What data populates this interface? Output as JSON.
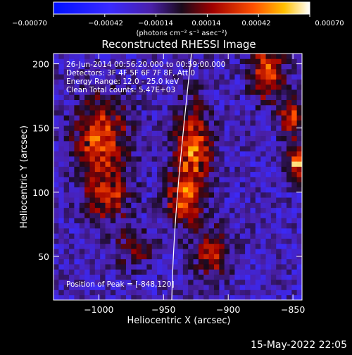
{
  "chart_data": {
    "type": "heatmap",
    "title": "Reconstructed RHESSI Image",
    "xlabel": "Heliocentric X (arcsec)",
    "ylabel": "Heliocentric Y (arcsec)",
    "xlim": [
      -1035,
      -843
    ],
    "ylim": [
      16,
      208
    ],
    "x_ticks": [
      -1000,
      -950,
      -900,
      -850
    ],
    "y_ticks": [
      50,
      100,
      150,
      200
    ],
    "colorbar": {
      "label": "(photons cm⁻² s⁻¹ asec⁻²)",
      "range": [
        -0.0007,
        0.0007
      ],
      "ticks": [
        "-0.00070",
        "-0.00042",
        "-0.00014",
        "0.00014",
        "0.00042",
        "0.00070"
      ]
    },
    "annotations": [
      "26-Jun-2014 00:56:20.000 to 00:59:00.000",
      "Detectors: 3F 4F 5F 6F 7F 8F, Att 0",
      "Energy Range: 12.0 - 25.0 keV",
      "Clean     Total counts: 5.47E+03"
    ],
    "peak_label": "Position of Peak = [-848,120]",
    "sources": [
      {
        "x": -1000,
        "y": 140,
        "sx": 14,
        "sy": 22,
        "amp": 0.00055
      },
      {
        "x": -995,
        "y": 95,
        "sx": 12,
        "sy": 14,
        "amp": 0.0004
      },
      {
        "x": -975,
        "y": 55,
        "sx": 10,
        "sy": 10,
        "amp": 0.0003
      },
      {
        "x": -930,
        "y": 130,
        "sx": 10,
        "sy": 26,
        "amp": 0.0006
      },
      {
        "x": -938,
        "y": 90,
        "sx": 9,
        "sy": 12,
        "amp": 0.00045
      },
      {
        "x": -915,
        "y": 50,
        "sx": 10,
        "sy": 14,
        "amp": 0.0004
      },
      {
        "x": -872,
        "y": 190,
        "sx": 9,
        "sy": 14,
        "amp": 0.00058
      },
      {
        "x": -853,
        "y": 155,
        "sx": 6,
        "sy": 12,
        "amp": 0.0005
      },
      {
        "x": -848,
        "y": 120,
        "sx": 6,
        "sy": 8,
        "amp": 0.0007
      }
    ]
  },
  "footer_date": "15-May-2022 22:05"
}
